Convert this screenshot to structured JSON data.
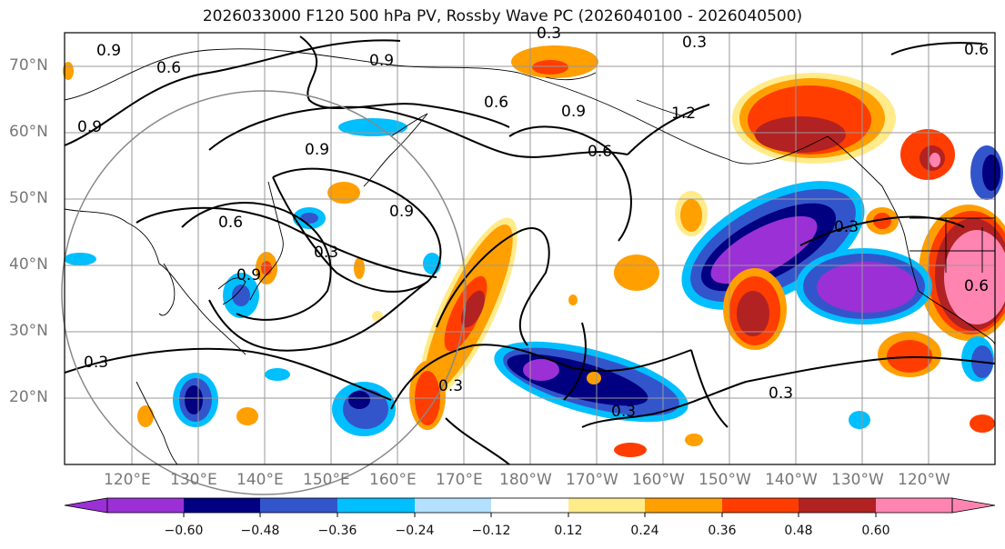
{
  "title": "2026033000 F120 500 hPa PV, Rossby Wave PC (2026040100 - 2026040500)",
  "latitude_labels": [
    "70°N",
    "60°N",
    "50°N",
    "40°N",
    "30°N",
    "20°N"
  ],
  "longitude_labels": [
    "120°E",
    "130°E",
    "140°E",
    "150°E",
    "160°E",
    "170°E",
    "180°W",
    "170°W",
    "160°W",
    "150°W",
    "140°W",
    "130°W",
    "120°W"
  ],
  "contour_labels": [
    "0.3",
    "0.6",
    "0.9",
    "1.2"
  ],
  "colorbar": {
    "ticks": [
      "−0.60",
      "−0.48",
      "−0.36",
      "−0.24",
      "−0.12",
      "0.12",
      "0.24",
      "0.36",
      "0.48",
      "0.60"
    ],
    "colors": [
      "#9b30d6",
      "#000080",
      "#3355cc",
      "#00bfff",
      "#b3e0ff",
      "#ffffff",
      "#ffeb8a",
      "#ff9f00",
      "#ff3d00",
      "#b22222",
      "#ff85b0"
    ]
  },
  "palette": {
    "purple": "#9b30d6",
    "navy": "#000080",
    "blue": "#3355cc",
    "cyan": "#00bfff",
    "lightblue": "#b3e0ff",
    "yellow": "#ffeb8a",
    "orange": "#ff9f00",
    "redorange": "#ff3d00",
    "darkred": "#b22222",
    "pink": "#ff85b0"
  }
}
